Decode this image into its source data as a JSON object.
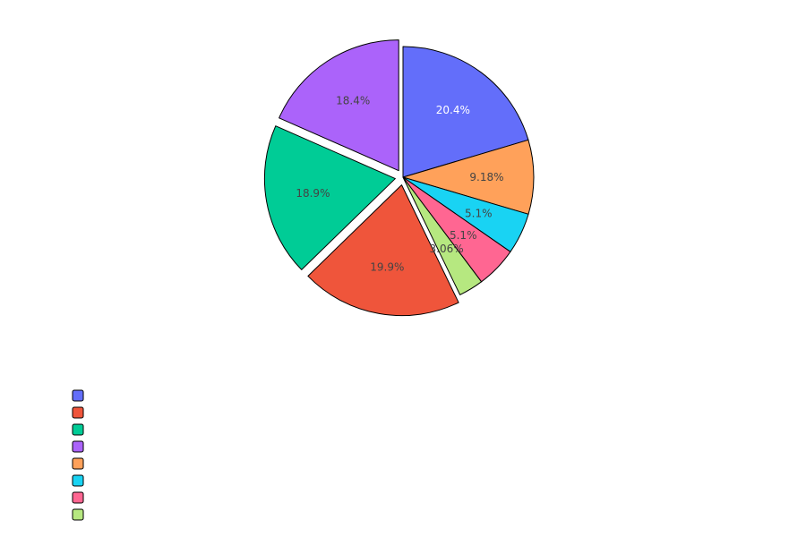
{
  "chart_data": {
    "type": "pie",
    "title": "",
    "values": [
      20.4,
      19.9,
      18.9,
      18.4,
      9.18,
      5.1,
      5.1,
      3.06
    ],
    "labels": [
      "20.4%",
      "19.9%",
      "18.9%",
      "18.4%",
      "9.18%",
      "5.1%",
      "5.1%",
      "3.06%"
    ],
    "colors": [
      "#636efa",
      "#ef553b",
      "#00cc96",
      "#ab63fa",
      "#ffa15a",
      "#19d3f3",
      "#ff6692",
      "#b6e880"
    ],
    "label_colors": [
      "#ffffff",
      "#444444",
      "#444444",
      "#444444",
      "#444444",
      "#444444",
      "#444444",
      "#444444"
    ],
    "start_angle_deg": 90,
    "direction": "clockwise",
    "slice_order": [
      0,
      4,
      5,
      6,
      7,
      1,
      2,
      3
    ],
    "pulled_slices": [
      1,
      2,
      3
    ],
    "legend": {
      "placement": "bottom-left",
      "entries": [
        "",
        "",
        "",
        "",
        "",
        "",
        "",
        ""
      ]
    }
  }
}
